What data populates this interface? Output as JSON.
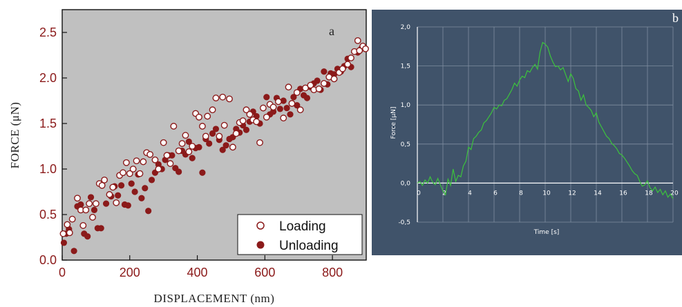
{
  "chart_data": [
    {
      "type": "scatter",
      "panel_label": "a",
      "xlabel": "DISPLACEMENT  (nm)",
      "ylabel": "FORCE  (μN)",
      "xlim": [
        0,
        900
      ],
      "ylim": [
        0,
        2.75
      ],
      "xticks": [
        "0",
        "200",
        "400",
        "600",
        "800"
      ],
      "yticks": [
        "0.0",
        "0.5",
        "1.0",
        "1.5",
        "2.0",
        "2.5"
      ],
      "legend_position": "bottom-right",
      "background": "#c0c0c0",
      "colors": {
        "loading": "#8b1a1a",
        "unloading": "#8b1a1a",
        "ticks": "#8b1a1a"
      },
      "series": [
        {
          "name": "Loading",
          "marker": "open-circle",
          "points": [
            [
              3,
              0.29
            ],
            [
              15,
              0.39
            ],
            [
              22,
              0.3
            ],
            [
              30,
              0.45
            ],
            [
              45,
              0.68
            ],
            [
              55,
              0.55
            ],
            [
              62,
              0.38
            ],
            [
              70,
              0.55
            ],
            [
              80,
              0.62
            ],
            [
              90,
              0.47
            ],
            [
              100,
              0.62
            ],
            [
              110,
              0.84
            ],
            [
              118,
              0.82
            ],
            [
              125,
              0.88
            ],
            [
              140,
              0.72
            ],
            [
              150,
              0.8
            ],
            [
              160,
              0.63
            ],
            [
              170,
              0.93
            ],
            [
              180,
              0.96
            ],
            [
              190,
              1.07
            ],
            [
              200,
              0.95
            ],
            [
              210,
              1.0
            ],
            [
              220,
              1.09
            ],
            [
              230,
              0.95
            ],
            [
              240,
              1.08
            ],
            [
              250,
              1.18
            ],
            [
              260,
              1.16
            ],
            [
              275,
              1.1
            ],
            [
              285,
              1.0
            ],
            [
              300,
              1.29
            ],
            [
              310,
              1.15
            ],
            [
              320,
              1.06
            ],
            [
              330,
              1.47
            ],
            [
              345,
              1.2
            ],
            [
              355,
              1.28
            ],
            [
              365,
              1.37
            ],
            [
              375,
              1.19
            ],
            [
              385,
              1.25
            ],
            [
              395,
              1.61
            ],
            [
              405,
              1.57
            ],
            [
              415,
              1.47
            ],
            [
              425,
              1.36
            ],
            [
              430,
              1.58
            ],
            [
              445,
              1.65
            ],
            [
              455,
              1.78
            ],
            [
              465,
              1.36
            ],
            [
              475,
              1.79
            ],
            [
              480,
              1.48
            ],
            [
              495,
              1.77
            ],
            [
              505,
              1.24
            ],
            [
              515,
              1.39
            ],
            [
              525,
              1.51
            ],
            [
              535,
              1.53
            ],
            [
              545,
              1.65
            ],
            [
              555,
              1.6
            ],
            [
              565,
              1.54
            ],
            [
              575,
              1.52
            ],
            [
              585,
              1.29
            ],
            [
              595,
              1.67
            ],
            [
              605,
              1.57
            ],
            [
              615,
              1.71
            ],
            [
              625,
              1.68
            ],
            [
              640,
              1.74
            ],
            [
              655,
              1.56
            ],
            [
              670,
              1.9
            ],
            [
              680,
              1.72
            ],
            [
              695,
              1.84
            ],
            [
              705,
              1.65
            ],
            [
              720,
              1.89
            ],
            [
              735,
              1.92
            ],
            [
              745,
              1.87
            ],
            [
              760,
              1.88
            ],
            [
              775,
              1.94
            ],
            [
              790,
              2.01
            ],
            [
              805,
              1.99
            ],
            [
              820,
              2.06
            ],
            [
              830,
              2.1
            ],
            [
              845,
              2.15
            ],
            [
              855,
              2.22
            ],
            [
              865,
              2.29
            ],
            [
              875,
              2.41
            ],
            [
              880,
              2.3
            ],
            [
              890,
              2.35
            ],
            [
              898,
              2.32
            ]
          ]
        },
        {
          "name": "Unloading",
          "marker": "filled-circle",
          "points": [
            [
              5,
              0.19
            ],
            [
              12,
              0.29
            ],
            [
              20,
              0.34
            ],
            [
              35,
              0.1
            ],
            [
              45,
              0.59
            ],
            [
              55,
              0.61
            ],
            [
              65,
              0.29
            ],
            [
              75,
              0.26
            ],
            [
              85,
              0.69
            ],
            [
              95,
              0.55
            ],
            [
              105,
              0.35
            ],
            [
              115,
              0.35
            ],
            [
              130,
              0.62
            ],
            [
              145,
              0.7
            ],
            [
              155,
              0.81
            ],
            [
              165,
              0.71
            ],
            [
              175,
              0.82
            ],
            [
              185,
              0.61
            ],
            [
              195,
              0.6
            ],
            [
              205,
              0.84
            ],
            [
              215,
              0.75
            ],
            [
              225,
              0.94
            ],
            [
              235,
              0.68
            ],
            [
              245,
              0.79
            ],
            [
              255,
              0.54
            ],
            [
              265,
              0.88
            ],
            [
              275,
              0.96
            ],
            [
              285,
              1.05
            ],
            [
              295,
              1.0
            ],
            [
              305,
              1.1
            ],
            [
              315,
              1.15
            ],
            [
              325,
              1.15
            ],
            [
              335,
              1.01
            ],
            [
              345,
              0.97
            ],
            [
              355,
              1.2
            ],
            [
              365,
              1.16
            ],
            [
              375,
              1.3
            ],
            [
              385,
              1.12
            ],
            [
              395,
              1.23
            ],
            [
              405,
              1.24
            ],
            [
              415,
              0.96
            ],
            [
              425,
              1.33
            ],
            [
              435,
              1.28
            ],
            [
              445,
              1.39
            ],
            [
              455,
              1.44
            ],
            [
              465,
              1.32
            ],
            [
              475,
              1.21
            ],
            [
              485,
              1.26
            ],
            [
              495,
              1.33
            ],
            [
              505,
              1.35
            ],
            [
              515,
              1.44
            ],
            [
              525,
              1.4
            ],
            [
              535,
              1.48
            ],
            [
              545,
              1.43
            ],
            [
              555,
              1.52
            ],
            [
              565,
              1.63
            ],
            [
              575,
              1.58
            ],
            [
              585,
              1.5
            ],
            [
              595,
              1.67
            ],
            [
              605,
              1.79
            ],
            [
              615,
              1.6
            ],
            [
              625,
              1.63
            ],
            [
              635,
              1.78
            ],
            [
              645,
              1.66
            ],
            [
              655,
              1.75
            ],
            [
              665,
              1.67
            ],
            [
              675,
              1.6
            ],
            [
              685,
              1.79
            ],
            [
              695,
              1.7
            ],
            [
              705,
              1.88
            ],
            [
              715,
              1.81
            ],
            [
              725,
              1.78
            ],
            [
              735,
              1.9
            ],
            [
              745,
              1.94
            ],
            [
              755,
              1.97
            ],
            [
              765,
              1.87
            ],
            [
              775,
              2.07
            ],
            [
              785,
              1.93
            ],
            [
              795,
              2.05
            ],
            [
              805,
              2.04
            ],
            [
              815,
              2.1
            ],
            [
              825,
              2.07
            ],
            [
              835,
              2.13
            ],
            [
              845,
              2.21
            ],
            [
              855,
              2.12
            ],
            [
              865,
              2.29
            ],
            [
              875,
              2.28
            ],
            [
              885,
              2.32
            ]
          ]
        }
      ]
    },
    {
      "type": "line",
      "panel_label": "b",
      "xlabel": "Time [s]",
      "ylabel": "Force [μN]",
      "xlim": [
        0,
        20
      ],
      "ylim": [
        -0.5,
        2.0
      ],
      "xticks": [
        "0",
        "2",
        "4",
        "6",
        "8",
        "10",
        "12",
        "14",
        "16",
        "18",
        "20"
      ],
      "yticks": [
        "2,0",
        "1,5",
        "1,0",
        "0,5",
        "0,0",
        "-0,5"
      ],
      "grid": true,
      "background": "#40536a",
      "colors": {
        "line": "#3cc43c",
        "grid": "#7f8ea0",
        "text": "#ffffff"
      },
      "series": [
        {
          "points": [
            [
              0.0,
              0.0
            ],
            [
              0.2,
              0.02
            ],
            [
              0.4,
              -0.03
            ],
            [
              0.6,
              0.04
            ],
            [
              0.8,
              0.0
            ],
            [
              1.0,
              0.08
            ],
            [
              1.2,
              0.01
            ],
            [
              1.4,
              -0.02
            ],
            [
              1.6,
              0.06
            ],
            [
              1.8,
              -0.02
            ],
            [
              2.0,
              -0.1
            ],
            [
              2.2,
              -0.15
            ],
            [
              2.4,
              0.05
            ],
            [
              2.6,
              -0.03
            ],
            [
              2.8,
              0.18
            ],
            [
              3.0,
              0.02
            ],
            [
              3.2,
              0.1
            ],
            [
              3.4,
              0.08
            ],
            [
              3.6,
              0.22
            ],
            [
              3.8,
              0.28
            ],
            [
              4.0,
              0.46
            ],
            [
              4.2,
              0.43
            ],
            [
              4.4,
              0.57
            ],
            [
              4.6,
              0.6
            ],
            [
              4.8,
              0.65
            ],
            [
              5.0,
              0.68
            ],
            [
              5.2,
              0.77
            ],
            [
              5.4,
              0.8
            ],
            [
              5.6,
              0.85
            ],
            [
              5.8,
              0.9
            ],
            [
              6.0,
              0.97
            ],
            [
              6.2,
              0.95
            ],
            [
              6.4,
              1.0
            ],
            [
              6.6,
              0.99
            ],
            [
              6.8,
              1.06
            ],
            [
              7.0,
              1.08
            ],
            [
              7.2,
              1.14
            ],
            [
              7.4,
              1.2
            ],
            [
              7.6,
              1.28
            ],
            [
              7.8,
              1.24
            ],
            [
              8.0,
              1.32
            ],
            [
              8.2,
              1.37
            ],
            [
              8.4,
              1.35
            ],
            [
              8.6,
              1.44
            ],
            [
              8.8,
              1.42
            ],
            [
              9.0,
              1.48
            ],
            [
              9.2,
              1.52
            ],
            [
              9.4,
              1.46
            ],
            [
              9.6,
              1.68
            ],
            [
              9.8,
              1.8
            ],
            [
              10.0,
              1.78
            ],
            [
              10.2,
              1.74
            ],
            [
              10.4,
              1.63
            ],
            [
              10.6,
              1.55
            ],
            [
              10.8,
              1.49
            ],
            [
              11.0,
              1.5
            ],
            [
              11.2,
              1.45
            ],
            [
              11.4,
              1.48
            ],
            [
              11.6,
              1.39
            ],
            [
              11.8,
              1.3
            ],
            [
              12.0,
              1.4
            ],
            [
              12.2,
              1.34
            ],
            [
              12.4,
              1.21
            ],
            [
              12.6,
              1.18
            ],
            [
              12.8,
              1.06
            ],
            [
              13.0,
              1.13
            ],
            [
              13.2,
              1.0
            ],
            [
              13.4,
              0.97
            ],
            [
              13.6,
              0.93
            ],
            [
              13.8,
              0.85
            ],
            [
              14.0,
              0.9
            ],
            [
              14.2,
              0.78
            ],
            [
              14.4,
              0.72
            ],
            [
              14.6,
              0.66
            ],
            [
              14.8,
              0.6
            ],
            [
              15.0,
              0.57
            ],
            [
              15.2,
              0.51
            ],
            [
              15.4,
              0.48
            ],
            [
              15.6,
              0.44
            ],
            [
              15.8,
              0.38
            ],
            [
              16.0,
              0.36
            ],
            [
              16.2,
              0.32
            ],
            [
              16.4,
              0.27
            ],
            [
              16.6,
              0.22
            ],
            [
              16.8,
              0.16
            ],
            [
              17.0,
              0.12
            ],
            [
              17.2,
              0.1
            ],
            [
              17.4,
              0.02
            ],
            [
              17.6,
              -0.04
            ],
            [
              17.8,
              -0.02
            ],
            [
              18.0,
              0.03
            ],
            [
              18.2,
              -0.06
            ],
            [
              18.4,
              -0.1
            ],
            [
              18.6,
              -0.05
            ],
            [
              18.8,
              -0.12
            ],
            [
              19.0,
              -0.08
            ],
            [
              19.2,
              -0.15
            ],
            [
              19.4,
              -0.1
            ],
            [
              19.6,
              -0.18
            ],
            [
              19.8,
              -0.14
            ],
            [
              20.0,
              -0.2
            ]
          ]
        }
      ]
    }
  ]
}
